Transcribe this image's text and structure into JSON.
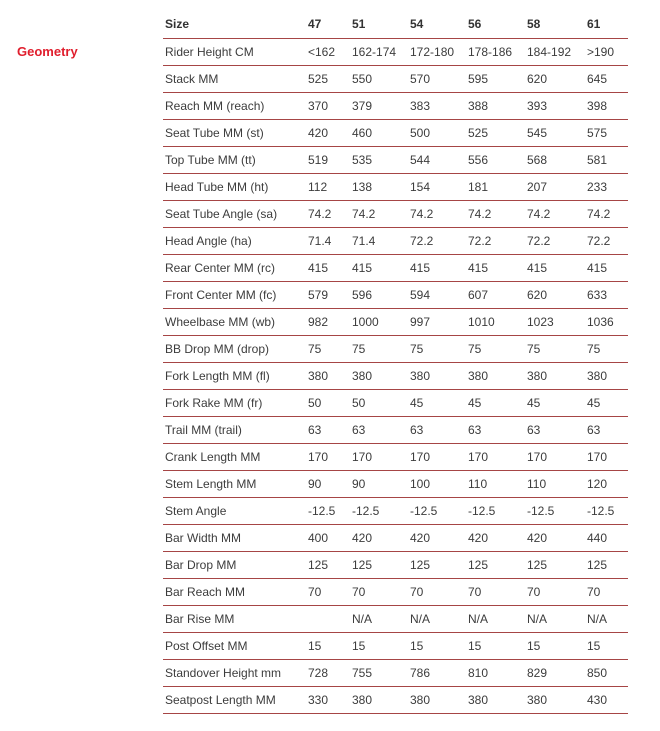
{
  "accent_color": "#e01e2d",
  "rule_color": "#a64545",
  "section": {
    "label": "Geometry"
  },
  "table": {
    "columns": [
      "Size",
      "47",
      "51",
      "54",
      "56",
      "58",
      "61"
    ],
    "rows": [
      {
        "label": "Rider Height CM",
        "values": [
          "<162",
          "162-174",
          "172-180",
          "178-186",
          "184-192",
          ">190"
        ]
      },
      {
        "label": "Stack MM",
        "values": [
          "525",
          "550",
          "570",
          "595",
          "620",
          "645"
        ]
      },
      {
        "label": "Reach MM (reach)",
        "values": [
          "370",
          "379",
          "383",
          "388",
          "393",
          "398"
        ]
      },
      {
        "label": "Seat Tube MM (st)",
        "values": [
          "420",
          "460",
          "500",
          "525",
          "545",
          "575"
        ]
      },
      {
        "label": "Top Tube MM (tt)",
        "values": [
          "519",
          "535",
          "544",
          "556",
          "568",
          "581"
        ]
      },
      {
        "label": "Head Tube MM (ht)",
        "values": [
          "112",
          "138",
          "154",
          "181",
          "207",
          "233"
        ]
      },
      {
        "label": "Seat Tube Angle (sa)",
        "values": [
          "74.2",
          "74.2",
          "74.2",
          "74.2",
          "74.2",
          "74.2"
        ]
      },
      {
        "label": "Head Angle (ha)",
        "values": [
          "71.4",
          "71.4",
          "72.2",
          "72.2",
          "72.2",
          "72.2"
        ]
      },
      {
        "label": "Rear Center MM (rc)",
        "values": [
          "415",
          "415",
          "415",
          "415",
          "415",
          "415"
        ]
      },
      {
        "label": "Front Center MM (fc)",
        "values": [
          "579",
          "596",
          "594",
          "607",
          "620",
          "633"
        ]
      },
      {
        "label": "Wheelbase MM (wb)",
        "values": [
          "982",
          "1000",
          "997",
          "1010",
          "1023",
          "1036"
        ]
      },
      {
        "label": "BB Drop MM (drop)",
        "values": [
          "75",
          "75",
          "75",
          "75",
          "75",
          "75"
        ]
      },
      {
        "label": "Fork Length MM (fl)",
        "values": [
          "380",
          "380",
          "380",
          "380",
          "380",
          "380"
        ]
      },
      {
        "label": "Fork Rake MM (fr)",
        "values": [
          "50",
          "50",
          "45",
          "45",
          "45",
          "45"
        ]
      },
      {
        "label": "Trail MM (trail)",
        "values": [
          "63",
          "63",
          "63",
          "63",
          "63",
          "63"
        ]
      },
      {
        "label": "Crank Length MM",
        "values": [
          "170",
          "170",
          "170",
          "170",
          "170",
          "170"
        ]
      },
      {
        "label": "Stem Length MM",
        "values": [
          "90",
          "90",
          "100",
          "110",
          "110",
          "120"
        ]
      },
      {
        "label": "Stem Angle",
        "values": [
          "-12.5",
          "-12.5",
          "-12.5",
          "-12.5",
          "-12.5",
          "-12.5"
        ]
      },
      {
        "label": "Bar Width MM",
        "values": [
          "400",
          "420",
          "420",
          "420",
          "420",
          "440"
        ]
      },
      {
        "label": "Bar Drop MM",
        "values": [
          "125",
          "125",
          "125",
          "125",
          "125",
          "125"
        ]
      },
      {
        "label": "Bar Reach MM",
        "values": [
          "70",
          "70",
          "70",
          "70",
          "70",
          "70"
        ]
      },
      {
        "label": "Bar Rise MM",
        "values": [
          "",
          "N/A",
          "N/A",
          "N/A",
          "N/A",
          "N/A"
        ]
      },
      {
        "label": "Post Offset MM",
        "values": [
          "15",
          "15",
          "15",
          "15",
          "15",
          "15"
        ]
      },
      {
        "label": "Standover Height mm",
        "values": [
          "728",
          "755",
          "786",
          "810",
          "829",
          "850"
        ]
      },
      {
        "label": "Seatpost Length MM",
        "values": [
          "330",
          "380",
          "380",
          "380",
          "380",
          "430"
        ]
      }
    ]
  }
}
